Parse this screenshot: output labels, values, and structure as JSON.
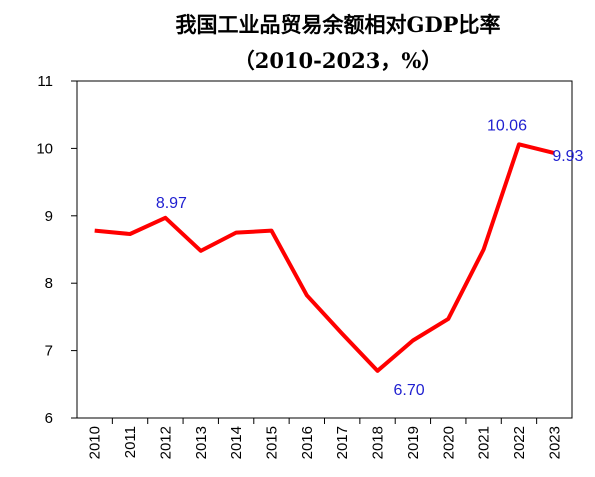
{
  "chart_data": {
    "type": "line",
    "title": "我国工业品贸易余额相对GDP比率",
    "subtitle": "（2010-2023，%）",
    "categories": [
      "2010",
      "2011",
      "2012",
      "2013",
      "2014",
      "2015",
      "2016",
      "2017",
      "2018",
      "2019",
      "2020",
      "2021",
      "2022",
      "2023"
    ],
    "series": [
      {
        "name": "工业品贸易余额相对GDP比率",
        "color": "#ff0000",
        "values": [
          8.78,
          8.73,
          8.97,
          8.48,
          8.75,
          8.78,
          7.82,
          7.25,
          6.7,
          7.15,
          7.47,
          8.5,
          10.06,
          9.93
        ],
        "value_labels": [
          null,
          null,
          "8.97",
          null,
          null,
          null,
          null,
          null,
          "6.70",
          null,
          null,
          null,
          "10.06",
          "9.93"
        ],
        "value_label_color": "#1f1fd0"
      }
    ],
    "ylim": [
      6,
      11
    ],
    "yticks": [
      6,
      7,
      8,
      9,
      10,
      11
    ],
    "grid": false
  }
}
